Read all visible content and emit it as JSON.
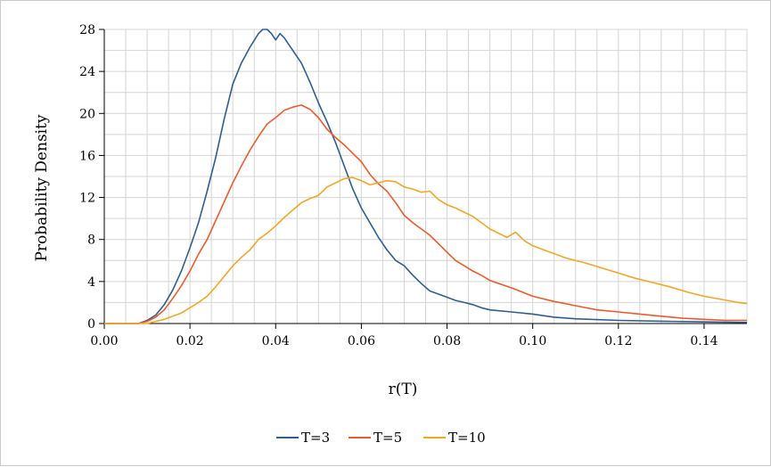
{
  "chart_data": {
    "type": "line",
    "title": "",
    "xlabel": "r(T)",
    "ylabel": "Probability Density",
    "xlim": [
      0,
      0.15
    ],
    "ylim": [
      0,
      28
    ],
    "x_ticks": [
      "0.00",
      "0.02",
      "0.04",
      "0.06",
      "0.08",
      "0.10",
      "0.12",
      "0.14"
    ],
    "y_ticks": [
      "0",
      "4",
      "8",
      "12",
      "16",
      "20",
      "24",
      "28"
    ],
    "grid": true,
    "legend_position": "bottom",
    "series": [
      {
        "name": "T=3",
        "color": "#2e5f93",
        "points": [
          [
            0.0,
            0
          ],
          [
            0.008,
            0
          ],
          [
            0.01,
            0.3
          ],
          [
            0.012,
            0.8
          ],
          [
            0.014,
            1.8
          ],
          [
            0.016,
            3.2
          ],
          [
            0.018,
            5.0
          ],
          [
            0.02,
            7.2
          ],
          [
            0.022,
            9.6
          ],
          [
            0.024,
            12.6
          ],
          [
            0.026,
            15.8
          ],
          [
            0.028,
            19.5
          ],
          [
            0.03,
            22.8
          ],
          [
            0.032,
            24.8
          ],
          [
            0.034,
            26.3
          ],
          [
            0.036,
            27.6
          ],
          [
            0.037,
            28.0
          ],
          [
            0.038,
            28.0
          ],
          [
            0.039,
            27.6
          ],
          [
            0.04,
            27.0
          ],
          [
            0.041,
            27.6
          ],
          [
            0.042,
            27.2
          ],
          [
            0.044,
            26.0
          ],
          [
            0.046,
            24.8
          ],
          [
            0.048,
            23.0
          ],
          [
            0.05,
            21.0
          ],
          [
            0.052,
            19.2
          ],
          [
            0.054,
            17.2
          ],
          [
            0.056,
            15.0
          ],
          [
            0.058,
            12.8
          ],
          [
            0.06,
            11.0
          ],
          [
            0.062,
            9.6
          ],
          [
            0.064,
            8.2
          ],
          [
            0.066,
            7.0
          ],
          [
            0.068,
            6.0
          ],
          [
            0.07,
            5.5
          ],
          [
            0.072,
            4.6
          ],
          [
            0.074,
            3.8
          ],
          [
            0.076,
            3.1
          ],
          [
            0.078,
            2.8
          ],
          [
            0.08,
            2.5
          ],
          [
            0.082,
            2.2
          ],
          [
            0.084,
            2.0
          ],
          [
            0.086,
            1.8
          ],
          [
            0.088,
            1.5
          ],
          [
            0.09,
            1.3
          ],
          [
            0.095,
            1.1
          ],
          [
            0.1,
            0.9
          ],
          [
            0.105,
            0.6
          ],
          [
            0.11,
            0.45
          ],
          [
            0.12,
            0.3
          ],
          [
            0.13,
            0.22
          ],
          [
            0.14,
            0.15
          ],
          [
            0.15,
            0.1
          ]
        ]
      },
      {
        "name": "T=5",
        "color": "#f05a2a",
        "points": [
          [
            0.0,
            0
          ],
          [
            0.008,
            0
          ],
          [
            0.01,
            0.2
          ],
          [
            0.012,
            0.6
          ],
          [
            0.014,
            1.3
          ],
          [
            0.016,
            2.4
          ],
          [
            0.018,
            3.6
          ],
          [
            0.02,
            5.0
          ],
          [
            0.022,
            6.6
          ],
          [
            0.024,
            8.0
          ],
          [
            0.026,
            9.8
          ],
          [
            0.028,
            11.6
          ],
          [
            0.03,
            13.4
          ],
          [
            0.032,
            15.0
          ],
          [
            0.034,
            16.5
          ],
          [
            0.036,
            17.8
          ],
          [
            0.038,
            19.0
          ],
          [
            0.04,
            19.6
          ],
          [
            0.042,
            20.3
          ],
          [
            0.044,
            20.6
          ],
          [
            0.046,
            20.8
          ],
          [
            0.048,
            20.4
          ],
          [
            0.05,
            19.6
          ],
          [
            0.052,
            18.5
          ],
          [
            0.054,
            17.7
          ],
          [
            0.056,
            17.0
          ],
          [
            0.058,
            16.2
          ],
          [
            0.06,
            15.4
          ],
          [
            0.062,
            14.2
          ],
          [
            0.064,
            13.3
          ],
          [
            0.066,
            12.6
          ],
          [
            0.068,
            11.5
          ],
          [
            0.07,
            10.3
          ],
          [
            0.072,
            9.6
          ],
          [
            0.074,
            9.0
          ],
          [
            0.076,
            8.4
          ],
          [
            0.078,
            7.6
          ],
          [
            0.08,
            6.8
          ],
          [
            0.082,
            6.0
          ],
          [
            0.084,
            5.5
          ],
          [
            0.086,
            5.0
          ],
          [
            0.088,
            4.6
          ],
          [
            0.09,
            4.1
          ],
          [
            0.095,
            3.4
          ],
          [
            0.1,
            2.6
          ],
          [
            0.105,
            2.1
          ],
          [
            0.11,
            1.7
          ],
          [
            0.115,
            1.3
          ],
          [
            0.12,
            1.1
          ],
          [
            0.125,
            0.9
          ],
          [
            0.13,
            0.7
          ],
          [
            0.135,
            0.5
          ],
          [
            0.14,
            0.4
          ],
          [
            0.145,
            0.3
          ],
          [
            0.15,
            0.3
          ]
        ]
      },
      {
        "name": "T=10",
        "color": "#f5a623",
        "points": [
          [
            0.0,
            0
          ],
          [
            0.01,
            0
          ],
          [
            0.012,
            0.2
          ],
          [
            0.014,
            0.4
          ],
          [
            0.016,
            0.7
          ],
          [
            0.018,
            1.0
          ],
          [
            0.02,
            1.5
          ],
          [
            0.022,
            2.0
          ],
          [
            0.024,
            2.6
          ],
          [
            0.026,
            3.5
          ],
          [
            0.028,
            4.5
          ],
          [
            0.03,
            5.5
          ],
          [
            0.032,
            6.3
          ],
          [
            0.034,
            7.0
          ],
          [
            0.036,
            8.0
          ],
          [
            0.038,
            8.6
          ],
          [
            0.04,
            9.3
          ],
          [
            0.042,
            10.1
          ],
          [
            0.044,
            10.8
          ],
          [
            0.046,
            11.5
          ],
          [
            0.048,
            11.9
          ],
          [
            0.05,
            12.2
          ],
          [
            0.052,
            13.0
          ],
          [
            0.054,
            13.4
          ],
          [
            0.056,
            13.8
          ],
          [
            0.058,
            13.9
          ],
          [
            0.06,
            13.6
          ],
          [
            0.062,
            13.2
          ],
          [
            0.064,
            13.4
          ],
          [
            0.066,
            13.6
          ],
          [
            0.068,
            13.5
          ],
          [
            0.07,
            13.0
          ],
          [
            0.072,
            12.8
          ],
          [
            0.074,
            12.5
          ],
          [
            0.076,
            12.6
          ],
          [
            0.078,
            11.8
          ],
          [
            0.08,
            11.3
          ],
          [
            0.082,
            11.0
          ],
          [
            0.084,
            10.6
          ],
          [
            0.086,
            10.2
          ],
          [
            0.088,
            9.6
          ],
          [
            0.09,
            9.0
          ],
          [
            0.092,
            8.6
          ],
          [
            0.094,
            8.2
          ],
          [
            0.096,
            8.7
          ],
          [
            0.098,
            7.9
          ],
          [
            0.1,
            7.4
          ],
          [
            0.104,
            6.8
          ],
          [
            0.108,
            6.2
          ],
          [
            0.112,
            5.8
          ],
          [
            0.116,
            5.3
          ],
          [
            0.12,
            4.8
          ],
          [
            0.124,
            4.3
          ],
          [
            0.128,
            3.9
          ],
          [
            0.132,
            3.5
          ],
          [
            0.136,
            3.0
          ],
          [
            0.14,
            2.6
          ],
          [
            0.144,
            2.3
          ],
          [
            0.148,
            2.0
          ],
          [
            0.15,
            1.9
          ]
        ]
      }
    ]
  }
}
